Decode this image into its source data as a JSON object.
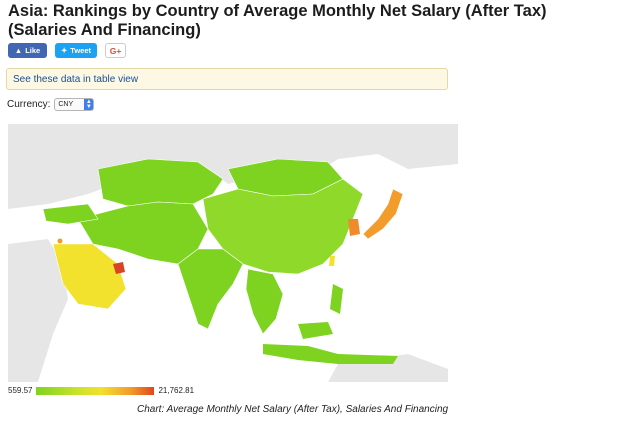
{
  "title": "Asia: Rankings by Country of Average Monthly Net Salary (After Tax) (Salaries And Financing)",
  "social": {
    "like": "Like",
    "tweet": "Tweet",
    "gplus": "G+"
  },
  "table_link": "See these data in table view",
  "currency": {
    "label": "Currency:",
    "selected": "CNY"
  },
  "legend": {
    "min": "559.57",
    "max": "21,762.81"
  },
  "caption": "Chart: Average Monthly Net Salary (After Tax), Salaries And Financing",
  "colors": {
    "low": "#7ed321",
    "mid": "#f2e12d",
    "high": "#e0471f",
    "ocean": "#ffffff",
    "land_nodata": "#e6e6e6"
  }
}
